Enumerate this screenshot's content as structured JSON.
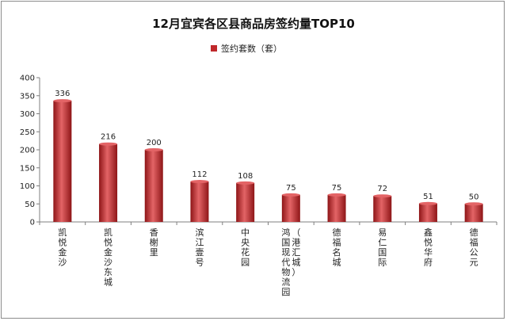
{
  "chart_data": {
    "type": "bar",
    "title": "12月宜宾各区县商品房签约量TOP10",
    "series": [
      {
        "name": "签约套数（套）",
        "values": [
          336,
          216,
          200,
          112,
          108,
          75,
          75,
          72,
          51,
          50
        ]
      }
    ],
    "categories": [
      "凯悦金沙",
      "凯悦金沙东城",
      "香榭里",
      "滨江壹号",
      "中央花园",
      "鸿国现代物流园(港汇城)",
      "德福名城",
      "易仁国际",
      "鑫悦华府",
      "德福公元"
    ],
    "category_label_lines": [
      [
        "凯悦金沙"
      ],
      [
        "凯悦金沙东城"
      ],
      [
        "香榭里"
      ],
      [
        "滨江壹号"
      ],
      [
        "中央花园"
      ],
      [
        "鸿国现代物流园",
        "（港汇城）"
      ],
      [
        "德福名城"
      ],
      [
        "易仁国际"
      ],
      [
        "鑫悦华府"
      ],
      [
        "德福公元"
      ]
    ],
    "ylim": [
      0,
      400
    ],
    "yticks": [
      0,
      50,
      100,
      150,
      200,
      250,
      300,
      350,
      400
    ],
    "xlabel": "",
    "ylabel": "",
    "grid": false,
    "legend_position": "top-center",
    "bar_color": "#c0282b",
    "bar_color_light": "#e36466",
    "bar_color_dark": "#8e1517"
  }
}
